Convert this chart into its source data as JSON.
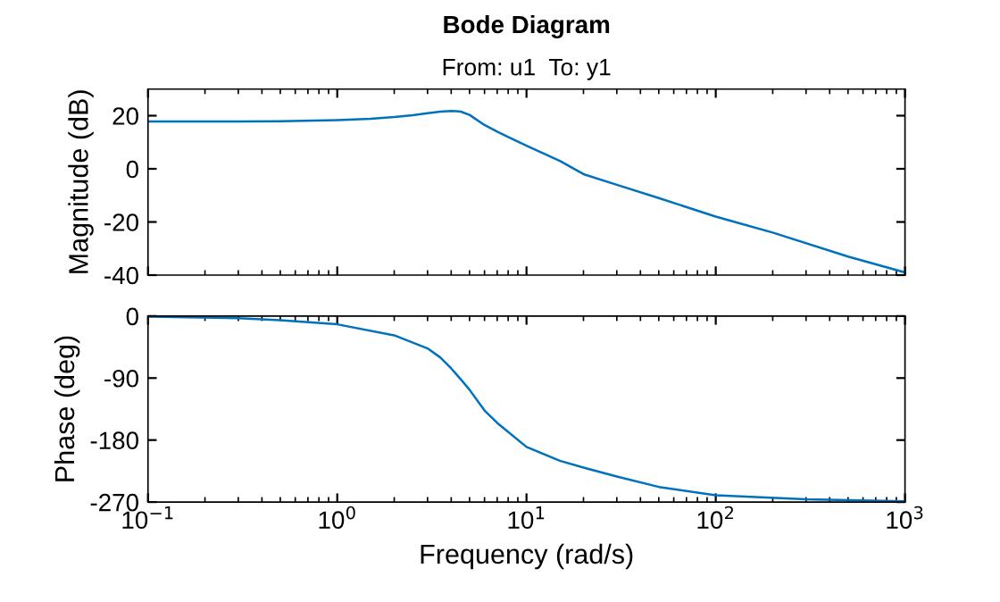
{
  "chart_data": [
    {
      "type": "line",
      "title": "Bode Diagram",
      "subtitle": "From: u1  To: y1",
      "ylabel": "Magnitude (dB)",
      "log": "x",
      "tick_labels": "y",
      "grid": false,
      "legend": false,
      "xlim": [
        0.1,
        1000
      ],
      "xticks": [
        {
          "value": 0.1,
          "label": null
        },
        {
          "value": 1,
          "label": null
        },
        {
          "value": 10,
          "label": null
        },
        {
          "value": 100,
          "label": null
        },
        {
          "value": 1000,
          "label": null
        }
      ],
      "ylim": [
        -40,
        30
      ],
      "yticks": [
        -40,
        -20,
        0,
        20
      ],
      "series": [
        {
          "color": "#0072bd",
          "x": [
            0.1,
            0.3,
            0.5,
            1,
            1.5,
            2,
            2.5,
            3,
            3.5,
            4,
            4.5,
            5,
            6,
            7,
            8,
            10,
            15,
            20,
            30,
            50,
            100,
            200,
            500,
            1000
          ],
          "values": [
            17.8,
            17.8,
            17.9,
            18.3,
            18.8,
            19.5,
            20.2,
            20.9,
            21.5,
            21.8,
            21.5,
            20.3,
            16.5,
            14,
            12,
            8.7,
            3,
            -2,
            -6,
            -11,
            -18,
            -24,
            -33,
            -39
          ]
        }
      ]
    },
    {
      "type": "line",
      "xlabel": "Frequency (rad/s)",
      "ylabel": "Phase (deg)",
      "log": "x",
      "grid": false,
      "legend": false,
      "xlim": [
        0.1,
        1000
      ],
      "xticks": [
        {
          "value": 0.1,
          "label": "10$^{−1}$"
        },
        {
          "value": 1,
          "label": "10$^{0}$"
        },
        {
          "value": 10,
          "label": "10$^{1}$"
        },
        {
          "value": 100,
          "label": "10$^{2}$"
        },
        {
          "value": 1000,
          "label": "10$^{3}$"
        }
      ],
      "ylim": [
        -270,
        0
      ],
      "yticks": [
        -270,
        -180,
        -90,
        0
      ],
      "series": [
        {
          "color": "#0072bd",
          "x": [
            0.1,
            0.3,
            0.5,
            1,
            2,
            3,
            3.5,
            4,
            4.5,
            5,
            6,
            7,
            10,
            15,
            20,
            30,
            50,
            100,
            300,
            1000
          ],
          "values": [
            -1,
            -3,
            -6,
            -12,
            -28,
            -47,
            -60,
            -76,
            -92,
            -107,
            -137,
            -155,
            -190,
            -210,
            -220,
            -233,
            -248,
            -260,
            -266,
            -269
          ]
        }
      ]
    }
  ]
}
